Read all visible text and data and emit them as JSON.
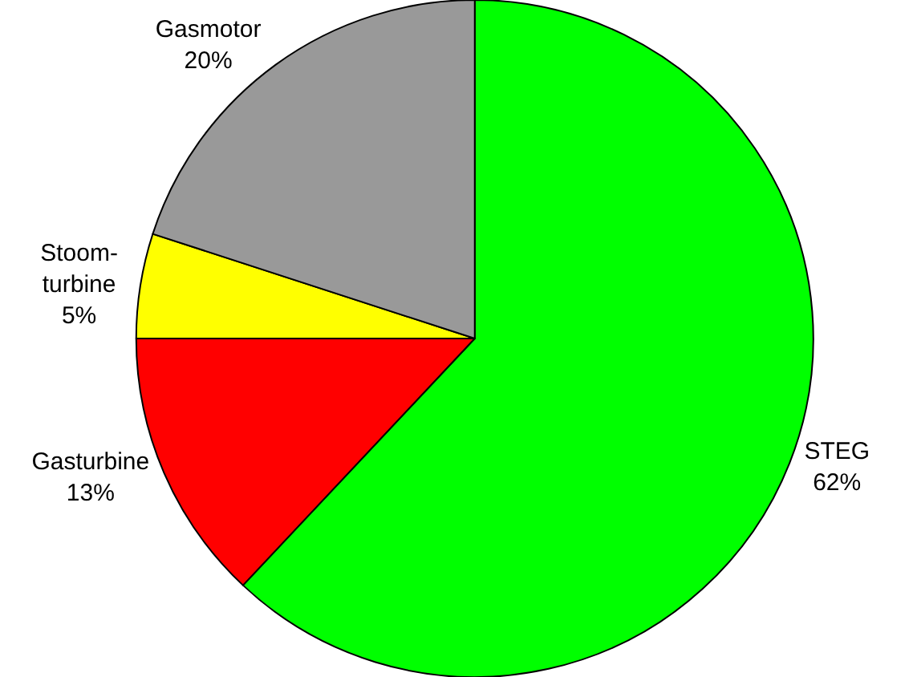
{
  "chart_data": {
    "type": "pie",
    "categories": [
      "STEG",
      "Gasturbine",
      "Stoom-turbine",
      "Gasmotor"
    ],
    "values": [
      62,
      13,
      5,
      20
    ],
    "colors": [
      "#00ff00",
      "#ff0000",
      "#ffff00",
      "#999999"
    ],
    "value_labels": [
      "62%",
      "13%",
      "5%",
      "20%"
    ],
    "legend": false
  }
}
